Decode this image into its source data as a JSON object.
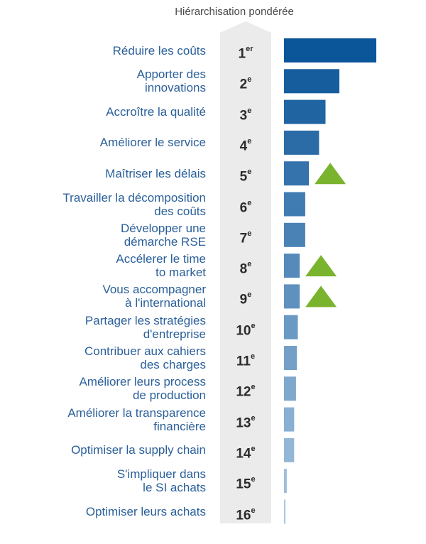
{
  "chart_data": {
    "type": "bar",
    "title": "Hiérarchisation pondérée",
    "orientation": "horizontal",
    "categories": [
      "Réduire les coûts",
      "Apporter des innovations",
      "Accroître la qualité",
      "Améliorer le service",
      "Maîtriser les délais",
      "Travailler la décomposition des coûts",
      "Développer une démarche RSE",
      "Accélerer le time to market",
      "Vous accompagner à l'international",
      "Partager les stratégies d'entreprise",
      "Contribuer aux cahiers des charges",
      "Améliorer leurs process de production",
      "Améliorer la transparence financière",
      "Optimiser la supply chain",
      "S'impliquer dans le SI achats",
      "Optimiser leurs achats"
    ],
    "label_lines": [
      [
        "Réduire les coûts"
      ],
      [
        "Apporter des",
        "innovations"
      ],
      [
        "Accroître la qualité"
      ],
      [
        "Améliorer le service"
      ],
      [
        "Maîtriser les délais"
      ],
      [
        "Travailler la décomposition",
        "des coûts"
      ],
      [
        "Développer une",
        "démarche RSE"
      ],
      [
        "Accélerer le time",
        "to market"
      ],
      [
        "Vous accompagner",
        "à l'international"
      ],
      [
        "Partager les stratégies",
        "d'entreprise"
      ],
      [
        "Contribuer aux cahiers",
        "des charges"
      ],
      [
        "Améliorer leurs process",
        "de production"
      ],
      [
        "Améliorer la transparence",
        "financière"
      ],
      [
        "Optimiser la supply chain"
      ],
      [
        "S'impliquer dans",
        "le SI achats"
      ],
      [
        "Optimiser leurs achats"
      ]
    ],
    "ranks": [
      {
        "num": "1",
        "suffix": "er"
      },
      {
        "num": "2",
        "suffix": "e"
      },
      {
        "num": "3",
        "suffix": "e"
      },
      {
        "num": "4",
        "suffix": "e"
      },
      {
        "num": "5",
        "suffix": "e"
      },
      {
        "num": "6",
        "suffix": "e"
      },
      {
        "num": "7",
        "suffix": "e"
      },
      {
        "num": "8",
        "suffix": "e"
      },
      {
        "num": "9",
        "suffix": "e"
      },
      {
        "num": "10",
        "suffix": "e"
      },
      {
        "num": "11",
        "suffix": "e"
      },
      {
        "num": "12",
        "suffix": "e"
      },
      {
        "num": "13",
        "suffix": "e"
      },
      {
        "num": "14",
        "suffix": "e"
      },
      {
        "num": "15",
        "suffix": "e"
      },
      {
        "num": "16",
        "suffix": "e"
      }
    ],
    "values": [
      100,
      60,
      45,
      38,
      27,
      23,
      23,
      17,
      17,
      15,
      14,
      13,
      11,
      11,
      3,
      1
    ],
    "xlim": [
      0,
      100
    ],
    "rising": [
      false,
      false,
      false,
      false,
      true,
      false,
      false,
      true,
      true,
      false,
      false,
      false,
      false,
      false,
      false,
      false
    ],
    "grid": false,
    "legend": "none",
    "colors": {
      "bar_dark": "#0b5599",
      "bar_light": "#a9c6e0",
      "arrow": "#7ab32e",
      "rank_column": "#ebebeb",
      "label_text": "#2a5f9a"
    }
  }
}
